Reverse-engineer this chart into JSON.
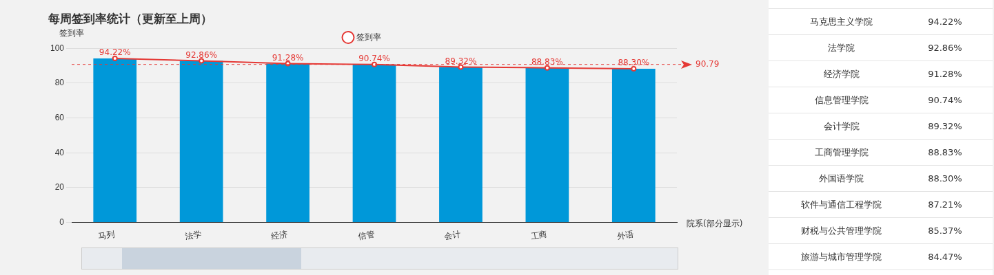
{
  "chart_data": [
    {
      "type": "bar",
      "title": "每周签到率统计（更新至上周）",
      "xlabel": "院系(部分显示)",
      "ylabel": "签到率",
      "categories": [
        "马列",
        "法学",
        "经济",
        "信管",
        "会计",
        "工商",
        "外语"
      ],
      "series": [
        {
          "type": "bar",
          "color": "#0098d9",
          "values": [
            94.22,
            92.86,
            91.28,
            90.74,
            89.32,
            88.83,
            88.3
          ]
        },
        {
          "type": "line",
          "name": "签到率",
          "color": "#e53935",
          "marker": "circle",
          "values": [
            94.22,
            92.86,
            91.28,
            90.74,
            89.32,
            88.83,
            88.3
          ],
          "value_labels": [
            "94.22%",
            "92.86%",
            "91.28%",
            "90.74%",
            "89.32%",
            "88.83%",
            "88.30%"
          ]
        }
      ],
      "ylim": [
        0,
        100
      ],
      "yticks": [
        0,
        20,
        40,
        60,
        80,
        100
      ],
      "grid": "y",
      "legend": "top",
      "ref_lines": [
        {
          "axis": "y",
          "value": 90.79,
          "label": "90.79",
          "color": "#e53935",
          "line_style": "dashed"
        }
      ]
    },
    {
      "type": "other",
      "categories": [
        "马克思主义学院",
        "法学院",
        "经济学院",
        "信息管理学院",
        "会计学院",
        "工商管理学院",
        "外国语学院",
        "软件与通信工程学院",
        "财税与公共管理学院",
        "旅游与城市管理学院"
      ],
      "value_labels": [
        "94.22%",
        "92.86%",
        "91.28%",
        "90.74%",
        "89.32%",
        "88.83%",
        "88.30%",
        "87.21%",
        "85.37%",
        "84.47%"
      ]
    }
  ]
}
